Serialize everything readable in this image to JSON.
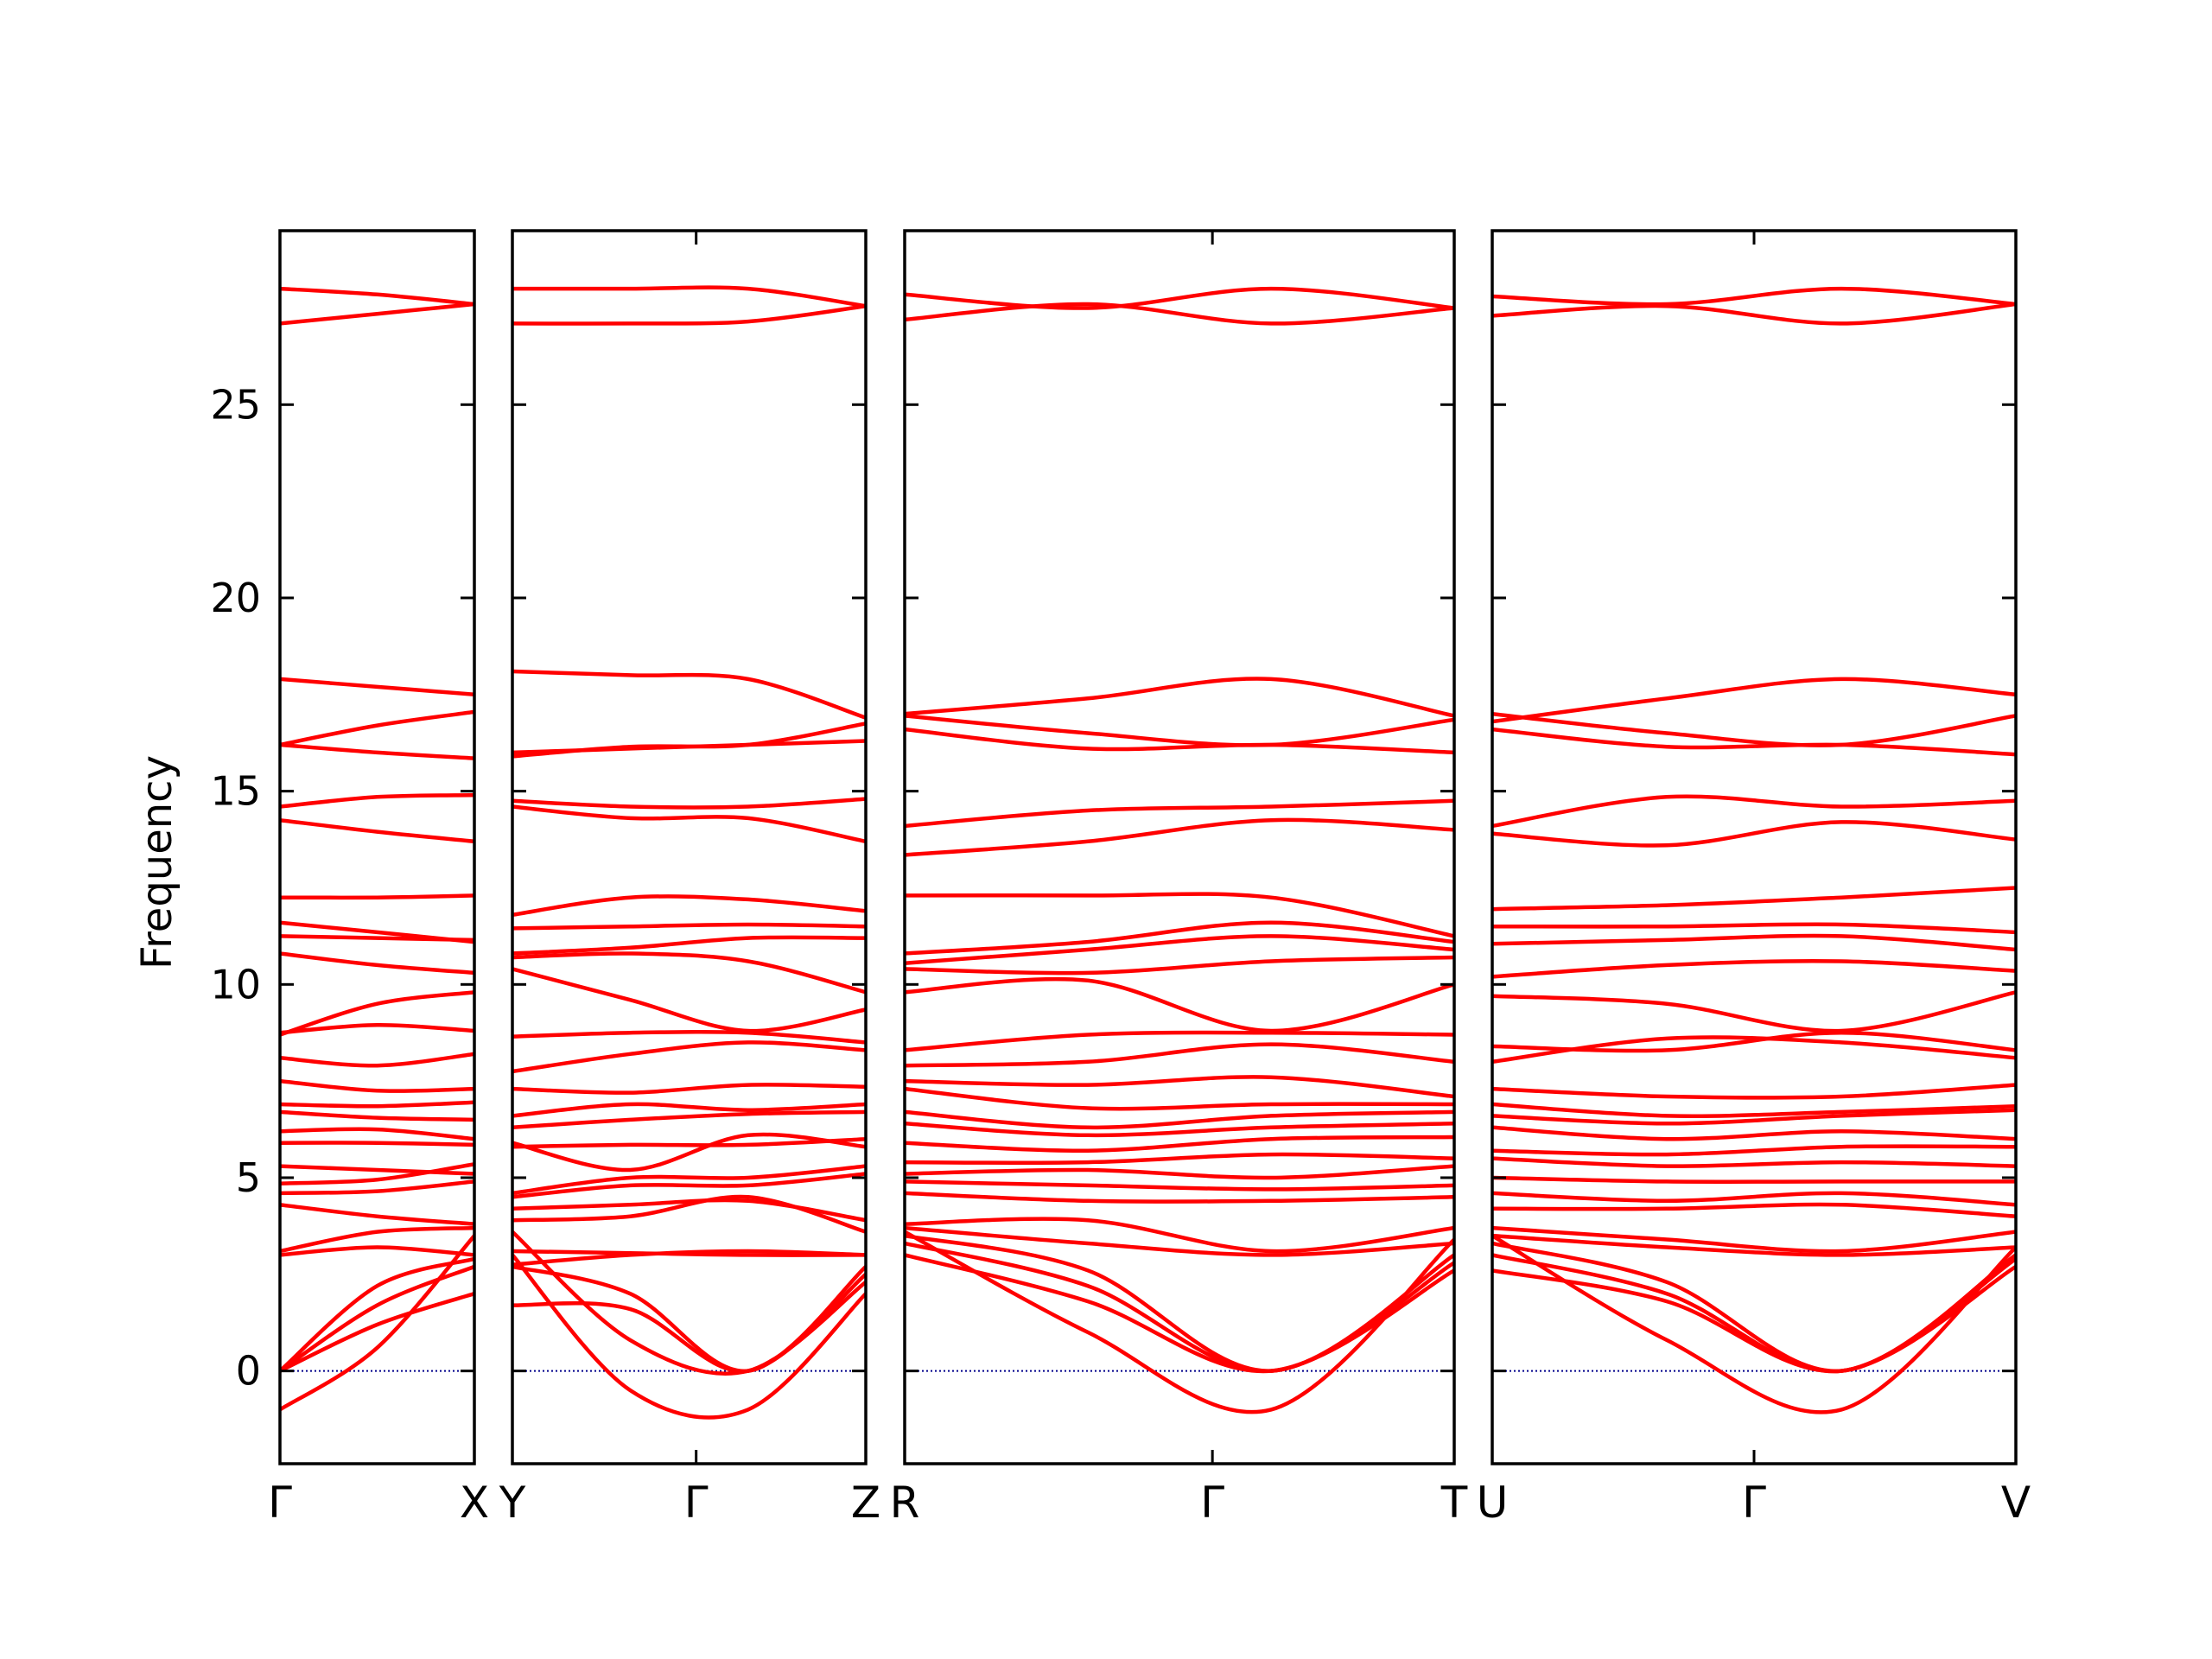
{
  "chart_data": {
    "type": "line",
    "ylabel": "Frequency",
    "ylim": [
      -2.4,
      29.5
    ],
    "yticks": [
      0,
      5,
      10,
      15,
      20,
      25
    ],
    "band_color": "#ff0000",
    "zero_line_color": "#00008b",
    "panels": [
      {
        "labels": [
          "Γ",
          "X"
        ],
        "bands": [
          [
            28.0,
            27.85,
            27.6
          ],
          [
            27.1,
            27.35,
            27.6
          ],
          [
            17.9,
            17.7,
            17.5
          ],
          [
            16.2,
            16.7,
            17.05
          ],
          [
            16.2,
            16.0,
            15.85
          ],
          [
            14.6,
            14.85,
            14.9
          ],
          [
            14.25,
            13.95,
            13.7
          ],
          [
            12.25,
            12.25,
            12.3
          ],
          [
            11.6,
            11.35,
            11.1
          ],
          [
            11.25,
            11.2,
            11.15
          ],
          [
            10.8,
            10.5,
            10.3
          ],
          [
            8.7,
            9.5,
            9.8
          ],
          [
            8.75,
            8.95,
            8.8
          ],
          [
            8.1,
            7.9,
            8.2
          ],
          [
            7.5,
            7.25,
            7.3
          ],
          [
            6.9,
            6.85,
            6.95
          ],
          [
            6.7,
            6.55,
            6.5
          ],
          [
            6.2,
            6.25,
            6.0
          ],
          [
            5.9,
            5.9,
            5.85
          ],
          [
            5.3,
            5.2,
            5.1
          ],
          [
            4.85,
            4.95,
            5.35
          ],
          [
            4.6,
            4.65,
            4.9
          ],
          [
            4.3,
            4.0,
            3.8
          ],
          [
            3.1,
            3.6,
            3.7
          ],
          [
            3.0,
            3.2,
            3.0
          ],
          [
            0.0,
            2.2,
            2.9
          ],
          [
            0.0,
            1.7,
            2.7
          ],
          [
            0.0,
            1.2,
            2.0
          ],
          [
            -1.0,
            0.6,
            3.5
          ]
        ]
      },
      {
        "labels": [
          "Y",
          "Γ",
          "Z"
        ],
        "bands": [
          [
            28.0,
            28.0,
            28.0,
            27.55
          ],
          [
            27.1,
            27.1,
            27.15,
            27.55
          ],
          [
            18.1,
            18.0,
            17.9,
            16.9
          ],
          [
            15.9,
            16.15,
            16.2,
            16.75
          ],
          [
            16.0,
            16.1,
            16.2,
            16.3
          ],
          [
            14.75,
            14.6,
            14.6,
            14.8
          ],
          [
            14.6,
            14.3,
            14.3,
            13.7
          ],
          [
            11.8,
            12.25,
            12.2,
            11.9
          ],
          [
            11.45,
            11.5,
            11.55,
            11.5
          ],
          [
            10.8,
            10.95,
            11.2,
            11.2
          ],
          [
            10.7,
            10.8,
            10.6,
            9.8
          ],
          [
            10.4,
            9.6,
            8.8,
            9.35
          ],
          [
            8.65,
            8.75,
            8.75,
            8.5
          ],
          [
            7.75,
            8.2,
            8.5,
            8.3
          ],
          [
            7.3,
            7.2,
            7.4,
            7.35
          ],
          [
            6.6,
            6.9,
            6.75,
            6.9
          ],
          [
            6.3,
            6.5,
            6.65,
            6.7
          ],
          [
            5.8,
            5.85,
            5.85,
            6.0
          ],
          [
            5.9,
            5.2,
            6.1,
            5.8
          ],
          [
            4.6,
            5.0,
            5.0,
            5.3
          ],
          [
            4.5,
            4.8,
            4.8,
            5.1
          ],
          [
            4.2,
            4.3,
            4.4,
            3.9
          ],
          [
            3.9,
            4.0,
            4.5,
            3.6
          ],
          [
            3.1,
            3.05,
            3.0,
            3.0
          ],
          [
            2.75,
            3.0,
            3.1,
            3.0
          ],
          [
            2.7,
            2.0,
            0.0,
            2.7
          ],
          [
            1.7,
            1.6,
            0.0,
            2.5
          ],
          [
            3.6,
            0.8,
            0.0,
            2.3
          ],
          [
            3.0,
            -0.5,
            -1.0,
            2.0
          ]
        ]
      },
      {
        "labels": [
          "R",
          "Γ",
          "T"
        ],
        "bands": [
          [
            27.85,
            27.5,
            28.0,
            27.5
          ],
          [
            27.2,
            27.6,
            27.1,
            27.5
          ],
          [
            17.0,
            17.4,
            17.9,
            16.95
          ],
          [
            16.95,
            16.5,
            16.2,
            16.85
          ],
          [
            16.6,
            16.1,
            16.2,
            16.0
          ],
          [
            14.1,
            14.5,
            14.6,
            14.75
          ],
          [
            13.35,
            13.7,
            14.25,
            14.0
          ],
          [
            12.3,
            12.3,
            12.25,
            11.25
          ],
          [
            10.8,
            11.1,
            11.6,
            11.1
          ],
          [
            10.55,
            10.9,
            11.25,
            10.9
          ],
          [
            10.4,
            10.3,
            10.6,
            10.7
          ],
          [
            9.8,
            10.1,
            8.8,
            10.0
          ],
          [
            8.3,
            8.7,
            8.75,
            8.7
          ],
          [
            7.9,
            8.0,
            8.45,
            8.0
          ],
          [
            7.5,
            7.4,
            7.6,
            7.1
          ],
          [
            7.3,
            6.8,
            6.9,
            6.9
          ],
          [
            6.7,
            6.3,
            6.6,
            6.7
          ],
          [
            6.4,
            6.1,
            6.3,
            6.4
          ],
          [
            5.9,
            5.7,
            6.0,
            6.05
          ],
          [
            5.4,
            5.4,
            5.6,
            5.5
          ],
          [
            5.1,
            5.2,
            5.0,
            5.3
          ],
          [
            4.9,
            4.8,
            4.7,
            4.8
          ],
          [
            4.6,
            4.4,
            4.4,
            4.5
          ],
          [
            3.8,
            3.9,
            3.1,
            3.7
          ],
          [
            3.7,
            3.3,
            3.0,
            3.3
          ],
          [
            3.5,
            2.6,
            0.0,
            3.0
          ],
          [
            3.3,
            2.2,
            0.0,
            2.8
          ],
          [
            3.0,
            1.8,
            0.0,
            2.6
          ],
          [
            3.6,
            1.0,
            -1.0,
            3.4
          ]
        ]
      },
      {
        "labels": [
          "U",
          "Γ",
          "V"
        ],
        "bands": [
          [
            27.8,
            27.6,
            28.0,
            27.6
          ],
          [
            27.3,
            27.55,
            27.1,
            27.6
          ],
          [
            16.8,
            17.4,
            17.9,
            17.5
          ],
          [
            17.0,
            16.5,
            16.2,
            16.95
          ],
          [
            16.6,
            16.15,
            16.2,
            15.95
          ],
          [
            14.1,
            14.85,
            14.6,
            14.75
          ],
          [
            13.9,
            13.6,
            14.2,
            13.75
          ],
          [
            11.95,
            12.05,
            12.25,
            12.5
          ],
          [
            11.5,
            11.5,
            11.55,
            11.35
          ],
          [
            11.05,
            11.15,
            11.25,
            10.9
          ],
          [
            10.2,
            10.5,
            10.6,
            10.35
          ],
          [
            9.7,
            9.5,
            8.8,
            9.8
          ],
          [
            8.4,
            8.3,
            8.75,
            8.3
          ],
          [
            8.0,
            8.6,
            8.5,
            8.1
          ],
          [
            7.3,
            7.1,
            7.1,
            7.4
          ],
          [
            6.9,
            6.6,
            6.7,
            6.85
          ],
          [
            6.6,
            6.4,
            6.6,
            6.75
          ],
          [
            6.3,
            6.0,
            6.2,
            6.0
          ],
          [
            5.7,
            5.6,
            5.8,
            5.8
          ],
          [
            5.5,
            5.3,
            5.4,
            5.3
          ],
          [
            5.0,
            4.9,
            4.9,
            4.9
          ],
          [
            4.6,
            4.4,
            4.6,
            4.3
          ],
          [
            4.2,
            4.2,
            4.3,
            4.0
          ],
          [
            3.7,
            3.4,
            3.1,
            3.6
          ],
          [
            3.5,
            3.2,
            3.0,
            3.2
          ],
          [
            3.3,
            2.3,
            0.0,
            3.0
          ],
          [
            3.0,
            2.0,
            0.0,
            2.9
          ],
          [
            2.6,
            1.8,
            0.0,
            2.7
          ],
          [
            3.5,
            0.8,
            -1.0,
            3.2
          ]
        ]
      }
    ]
  }
}
